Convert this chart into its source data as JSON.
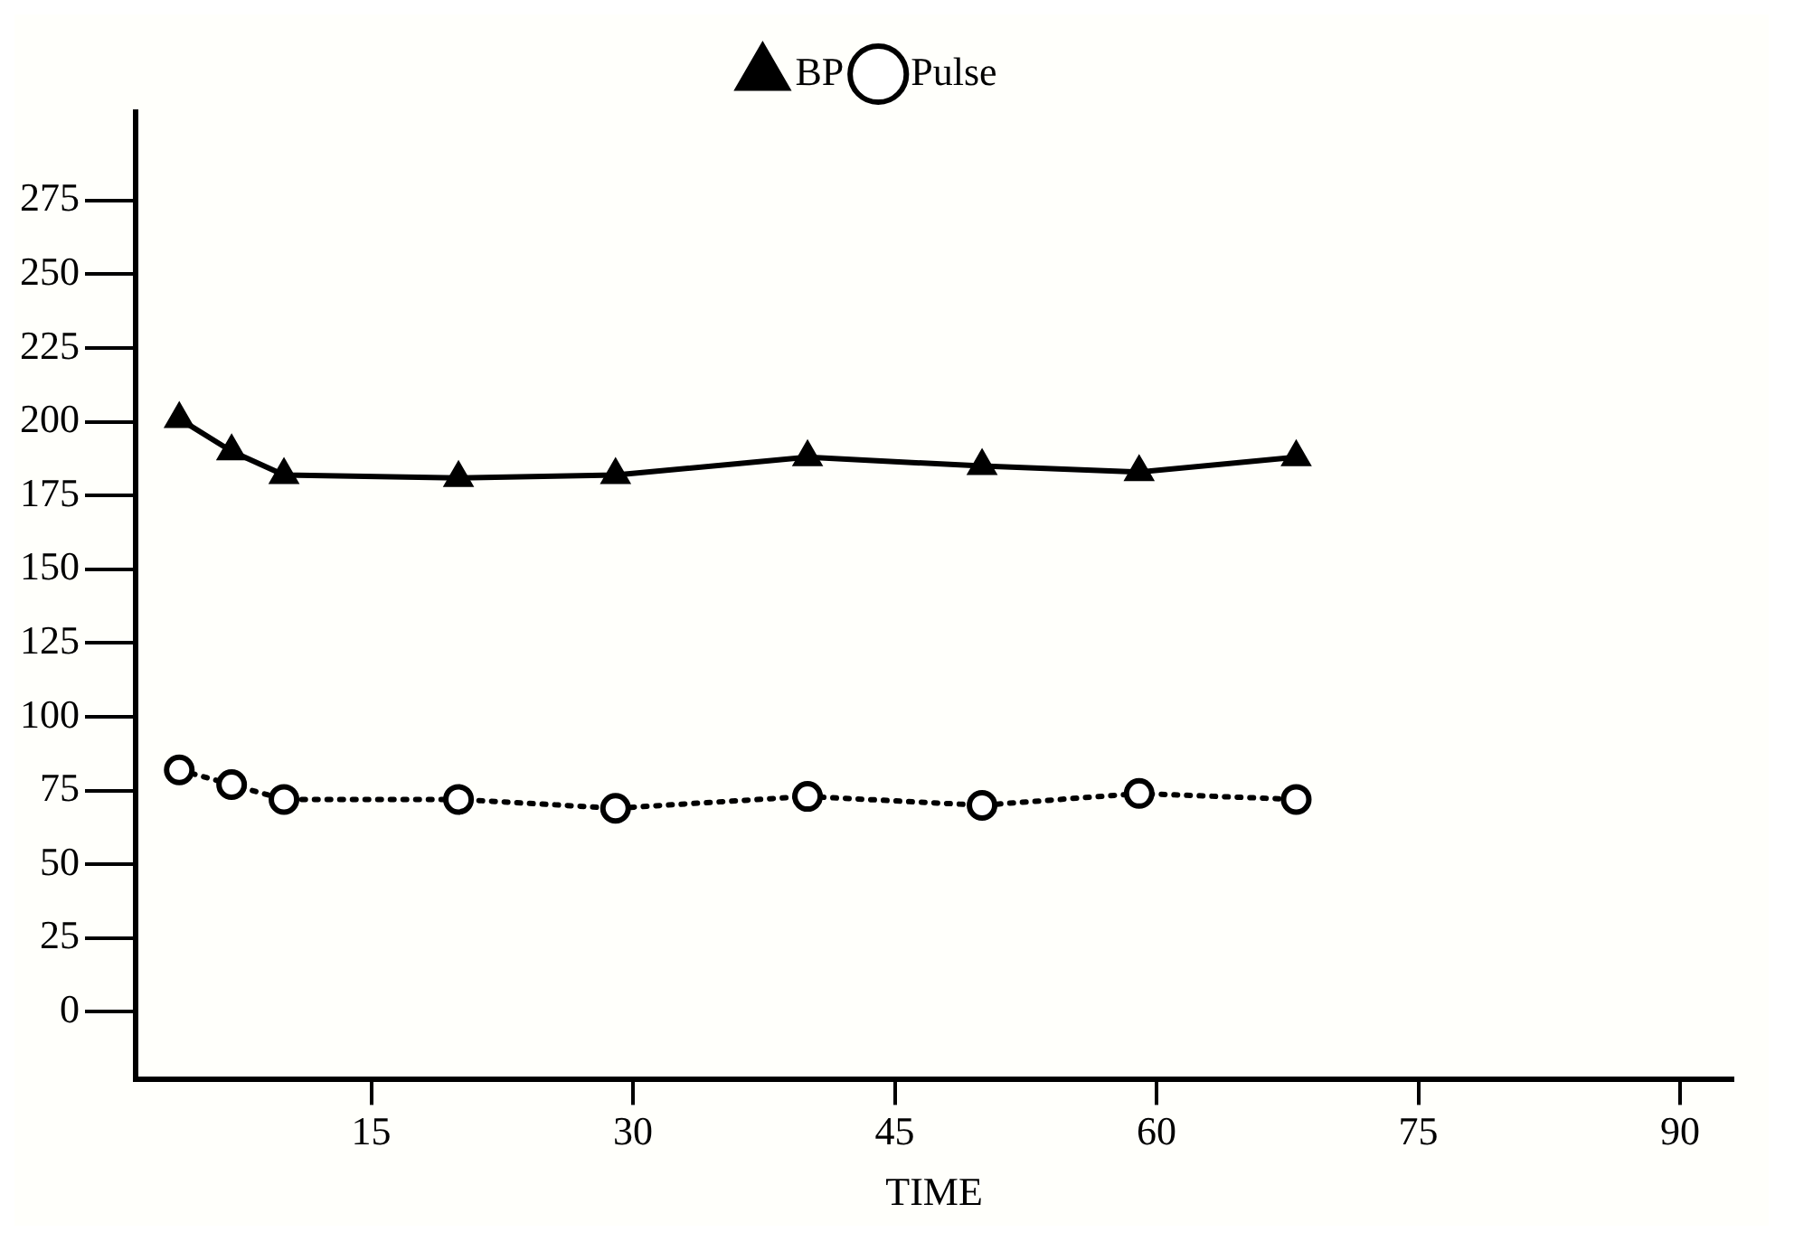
{
  "chart_data": {
    "type": "line",
    "xlabel": "TIME",
    "xlim": [
      1.5,
      93
    ],
    "xticks": [
      15,
      30,
      45,
      60,
      75,
      90
    ],
    "ylim": [
      -23,
      305
    ],
    "yticks": [
      0,
      25,
      50,
      75,
      100,
      125,
      150,
      175,
      200,
      225,
      250,
      275
    ],
    "grid": false,
    "legend": "top",
    "series": [
      {
        "name": "BP",
        "color": "#000000",
        "marker": "triangle",
        "line_style": "solid",
        "x": [
          4,
          7,
          10,
          20,
          29,
          40,
          50,
          59,
          68
        ],
        "values": [
          201,
          190,
          182,
          181,
          182,
          188,
          185,
          183,
          188
        ]
      },
      {
        "name": "Pulse",
        "color": "#000000",
        "marker": "circle",
        "line_style": "dotted",
        "x": [
          4,
          7,
          10,
          20,
          29,
          40,
          50,
          59,
          68
        ],
        "values": [
          82,
          77,
          72,
          72,
          69,
          73,
          70,
          74,
          72
        ]
      }
    ]
  }
}
